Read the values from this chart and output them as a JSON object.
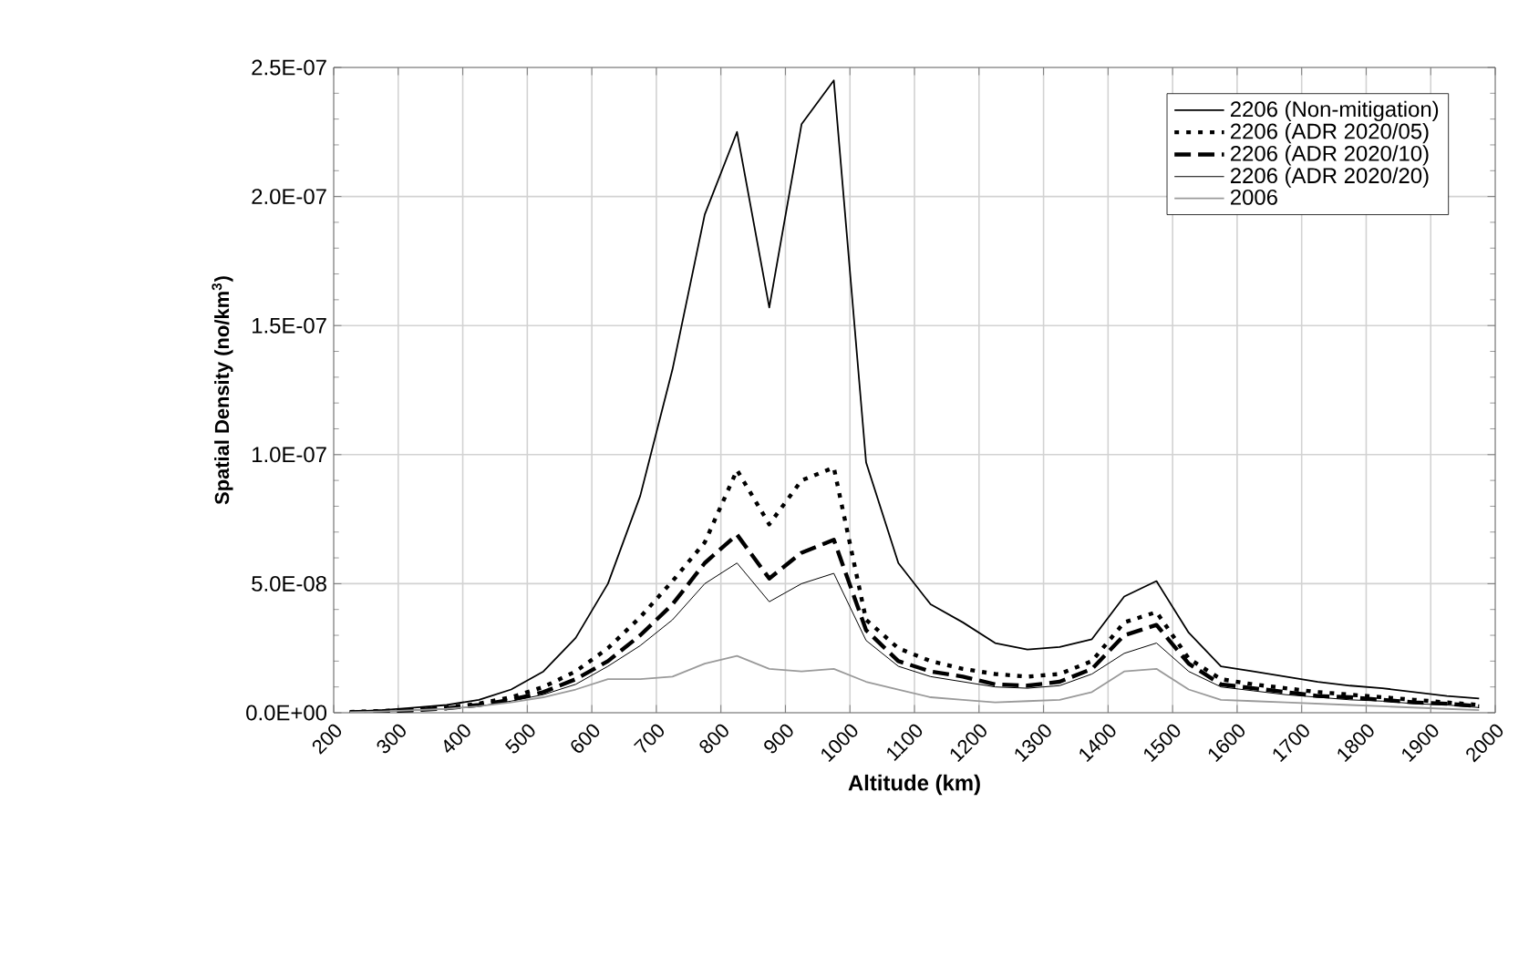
{
  "chart_data": {
    "type": "line",
    "xlabel": "Altitude (km)",
    "ylabel": "Spatial Density (no/km$^{3}$)",
    "x": [
      225,
      275,
      325,
      375,
      425,
      475,
      525,
      575,
      625,
      675,
      725,
      775,
      825,
      875,
      925,
      975,
      1025,
      1075,
      1125,
      1175,
      1225,
      1275,
      1325,
      1375,
      1425,
      1475,
      1525,
      1575,
      1625,
      1675,
      1725,
      1775,
      1825,
      1875,
      1925,
      1975
    ],
    "series": [
      {
        "name": "2206 (Non-mitigation)",
        "color": "#000000",
        "line_style": "solid",
        "values": [
          5e-10,
          1e-09,
          2e-09,
          3e-09,
          5e-09,
          9e-09,
          1.6e-08,
          2.9e-08,
          5e-08,
          8.4e-08,
          1.33e-07,
          1.93e-07,
          2.25e-07,
          1.57e-07,
          2.28e-07,
          2.45e-07,
          9.7e-08,
          5.8e-08,
          4.2e-08,
          3.5e-08,
          2.7e-08,
          2.45e-08,
          2.55e-08,
          2.85e-08,
          4.5e-08,
          5.1e-08,
          3.1e-08,
          1.8e-08,
          1.6e-08,
          1.4e-08,
          1.2e-08,
          1.05e-08,
          9.5e-09,
          8e-09,
          6.5e-09,
          5.5e-09
        ]
      },
      {
        "name": "2206 (ADR 2020/05)",
        "color": "#000000",
        "line_style": "dotted",
        "values": [
          3e-10,
          7e-10,
          1.2e-09,
          2e-09,
          3.5e-09,
          6e-09,
          1e-08,
          1.6e-08,
          2.5e-08,
          3.7e-08,
          5.1e-08,
          6.6e-08,
          9.4e-08,
          7.3e-08,
          9e-08,
          9.5e-08,
          3.6e-08,
          2.5e-08,
          2e-08,
          1.7e-08,
          1.5e-08,
          1.4e-08,
          1.5e-08,
          2e-08,
          3.5e-08,
          3.9e-08,
          2.1e-08,
          1.3e-08,
          1.1e-08,
          9.5e-09,
          8e-09,
          7e-09,
          6e-09,
          5e-09,
          4e-09,
          3e-09
        ]
      },
      {
        "name": "2206 (ADR 2020/10)",
        "color": "#000000",
        "line_style": "dashed",
        "values": [
          2e-10,
          5e-10,
          1e-09,
          1.7e-09,
          3e-09,
          5e-09,
          8e-09,
          1.3e-08,
          2e-08,
          3e-08,
          4.2e-08,
          5.8e-08,
          6.9e-08,
          5.2e-08,
          6.2e-08,
          6.7e-08,
          3.2e-08,
          2e-08,
          1.6e-08,
          1.4e-08,
          1.1e-08,
          1.05e-08,
          1.2e-08,
          1.7e-08,
          3e-08,
          3.4e-08,
          1.9e-08,
          1.1e-08,
          9.5e-09,
          8e-09,
          6.5e-09,
          6e-09,
          5e-09,
          4e-09,
          3.5e-09,
          2.5e-09
        ]
      },
      {
        "name": "2206 (ADR 2020/20)",
        "color": "#000000",
        "line_style": "solid",
        "values": [
          2e-10,
          5e-10,
          1e-09,
          1.5e-09,
          2.5e-09,
          4.5e-09,
          7e-09,
          1.1e-08,
          1.8e-08,
          2.6e-08,
          3.6e-08,
          5e-08,
          5.8e-08,
          4.3e-08,
          5e-08,
          5.4e-08,
          2.8e-08,
          1.8e-08,
          1.4e-08,
          1.2e-08,
          1e-08,
          9.5e-09,
          1.05e-08,
          1.5e-08,
          2.3e-08,
          2.7e-08,
          1.6e-08,
          1e-08,
          8.5e-09,
          7e-09,
          6e-09,
          5e-09,
          4.5e-09,
          3.5e-09,
          3e-09,
          2e-09
        ]
      },
      {
        "name": "2006",
        "color": "#9a9a9a",
        "line_style": "solid",
        "values": [
          2e-10,
          5e-10,
          1e-09,
          1.5e-09,
          2.5e-09,
          4e-09,
          6e-09,
          9e-09,
          1.3e-08,
          1.3e-08,
          1.4e-08,
          1.9e-08,
          2.2e-08,
          1.7e-08,
          1.6e-08,
          1.7e-08,
          1.2e-08,
          9e-09,
          6e-09,
          5e-09,
          4e-09,
          4.5e-09,
          5e-09,
          8e-09,
          1.6e-08,
          1.7e-08,
          9e-09,
          5e-09,
          4.5e-09,
          4e-09,
          3.5e-09,
          3e-09,
          2.5e-09,
          2e-09,
          1.5e-09,
          1e-09
        ]
      }
    ],
    "xlim": [
      200,
      2000
    ],
    "xticks": [
      200,
      300,
      400,
      500,
      600,
      700,
      800,
      900,
      1000,
      1100,
      1200,
      1300,
      1400,
      1500,
      1600,
      1700,
      1800,
      1900,
      2000
    ],
    "ylim": [
      0,
      2.5e-07
    ],
    "yticks": [
      {
        "value": 0,
        "label": "0.0E+00"
      },
      {
        "value": 5e-08,
        "label": "5.0E-08"
      },
      {
        "value": 1e-07,
        "label": "1.0E-07"
      },
      {
        "value": 1.5e-07,
        "label": "1.5E-07"
      },
      {
        "value": 2e-07,
        "label": "2.0E-07"
      },
      {
        "value": 2.5e-07,
        "label": "2.5E-07"
      }
    ],
    "grid": true,
    "legend": "top right"
  }
}
